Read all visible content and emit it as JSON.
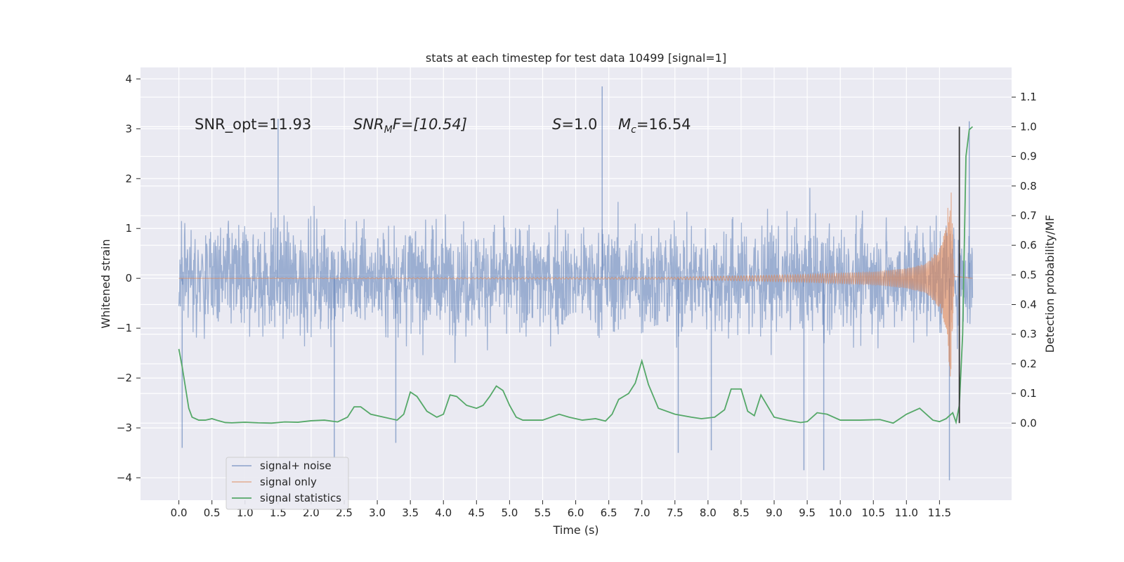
{
  "chart_data": {
    "type": "line",
    "title": "stats at each timestep for test data 10499 [signal=1]",
    "xlabel": "Time (s)",
    "ylabel": "Whitened strain",
    "ylabel_right": "Detection probability/MF",
    "xlim": [
      -0.58,
      12.59
    ],
    "ylim": [
      -4.45,
      4.23
    ],
    "ylim_right": [
      -0.26,
      1.2
    ],
    "x_ticks": [
      "0.0",
      "0.5",
      "1.0",
      "1.5",
      "2.0",
      "2.5",
      "3.0",
      "3.5",
      "4.0",
      "4.5",
      "5.0",
      "5.5",
      "6.0",
      "6.5",
      "7.0",
      "7.5",
      "8.0",
      "8.5",
      "9.0",
      "9.5",
      "10.0",
      "10.5",
      "11.0",
      "11.5"
    ],
    "y_ticks": [
      "4",
      "3",
      "2",
      "1",
      "0",
      "−1",
      "−2",
      "−3",
      "−4"
    ],
    "y_ticks_right": [
      "1.1",
      "1.0",
      "0.9",
      "0.8",
      "0.7",
      "0.6",
      "0.5",
      "0.4",
      "0.3",
      "0.2",
      "0.1",
      "0.0"
    ],
    "grid": true,
    "legend_position": "lower-left",
    "annotations": {
      "snr_opt": "SNR_opt=11.93",
      "snr_mf_prefix": "SNR",
      "snr_mf_sub": "M",
      "snr_mf_rest": "F=[10.54]",
      "s_prefix": "S",
      "s_rest": "=1.0",
      "mc_prefix": "M",
      "mc_sub": "c",
      "mc_rest": "=16.54"
    },
    "colors": {
      "background": "#eaeaf2",
      "grid": "#ffffff",
      "noise": "#4c72b0",
      "signal": "#dd8452",
      "stats": "#55a868",
      "marker": "#333333"
    },
    "series": [
      {
        "name": "signal+ noise",
        "style": "dense noise, amplitude envelope about ±2 with spikes to ±3.5",
        "x_range": [
          0.0,
          12.0
        ],
        "typical_abs_max": 1.9,
        "spikes": [
          [
            1.5,
            3.2
          ],
          [
            2.35,
            -3.6
          ],
          [
            6.4,
            3.85
          ],
          [
            9.45,
            -3.85
          ],
          [
            9.75,
            -3.85
          ],
          [
            11.65,
            -4.05
          ],
          [
            11.95,
            3.15
          ],
          [
            0.05,
            -3.4
          ],
          [
            3.28,
            -3.3
          ],
          [
            7.55,
            -3.5
          ],
          [
            8.05,
            -3.45
          ]
        ]
      },
      {
        "name": "signal only",
        "style": "chirp",
        "x": [
          0.0,
          7.5,
          8.5,
          9.5,
          10.5,
          11.0,
          11.3,
          11.5,
          11.6,
          11.67,
          11.72,
          12.0
        ],
        "amplitude": [
          0.0,
          0.02,
          0.05,
          0.08,
          0.13,
          0.2,
          0.3,
          0.6,
          1.0,
          2.1,
          0.1,
          0.0
        ]
      },
      {
        "name": "signal statistics",
        "axis": "right",
        "x": [
          0.0,
          0.05,
          0.1,
          0.15,
          0.2,
          0.3,
          0.4,
          0.5,
          0.6,
          0.7,
          0.8,
          0.9,
          1.0,
          1.2,
          1.4,
          1.6,
          1.8,
          2.0,
          2.2,
          2.4,
          2.55,
          2.65,
          2.75,
          2.9,
          3.1,
          3.3,
          3.4,
          3.5,
          3.6,
          3.75,
          3.9,
          4.0,
          4.1,
          4.2,
          4.35,
          4.5,
          4.6,
          4.7,
          4.8,
          4.9,
          5.0,
          5.1,
          5.2,
          5.35,
          5.5,
          5.75,
          5.9,
          6.1,
          6.3,
          6.45,
          6.55,
          6.65,
          6.8,
          6.9,
          7.0,
          7.1,
          7.25,
          7.5,
          7.75,
          7.9,
          8.1,
          8.25,
          8.35,
          8.5,
          8.6,
          8.7,
          8.8,
          9.0,
          9.2,
          9.4,
          9.5,
          9.65,
          9.8,
          10.0,
          10.3,
          10.6,
          10.8,
          10.9,
          11.0,
          11.2,
          11.4,
          11.5,
          11.6,
          11.7,
          11.75,
          11.8,
          11.85,
          11.9,
          11.95,
          12.0
        ],
        "values": [
          0.25,
          0.19,
          0.12,
          0.05,
          0.02,
          0.01,
          0.01,
          0.015,
          0.008,
          0.002,
          0.001,
          0.002,
          0.003,
          0.001,
          0.0,
          0.004,
          0.003,
          0.008,
          0.01,
          0.004,
          0.02,
          0.055,
          0.055,
          0.03,
          0.02,
          0.01,
          0.03,
          0.105,
          0.09,
          0.04,
          0.02,
          0.03,
          0.095,
          0.09,
          0.06,
          0.05,
          0.06,
          0.09,
          0.125,
          0.11,
          0.06,
          0.02,
          0.01,
          0.01,
          0.01,
          0.03,
          0.02,
          0.01,
          0.015,
          0.007,
          0.03,
          0.08,
          0.1,
          0.135,
          0.21,
          0.13,
          0.05,
          0.03,
          0.02,
          0.015,
          0.02,
          0.045,
          0.115,
          0.115,
          0.04,
          0.025,
          0.095,
          0.02,
          0.01,
          0.002,
          0.005,
          0.035,
          0.03,
          0.01,
          0.01,
          0.012,
          0.0,
          0.015,
          0.03,
          0.05,
          0.01,
          0.005,
          0.015,
          0.035,
          0.003,
          0.06,
          0.3,
          0.9,
          0.99,
          1.0
        ]
      }
    ],
    "marker_line": {
      "x": 11.8,
      "y_range": [
        0.0,
        1.0
      ],
      "axis": "right"
    }
  }
}
